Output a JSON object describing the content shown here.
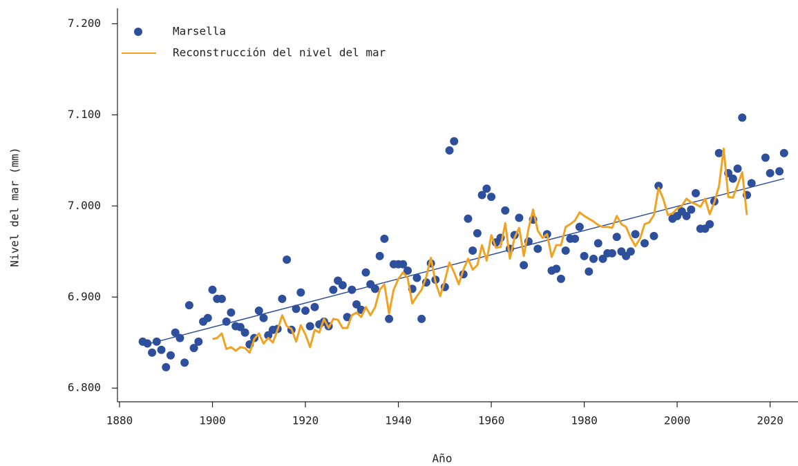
{
  "chart_data": {
    "type": "scatter",
    "x_label": "Año",
    "y_label": "Nivel del mar (mm)",
    "xlim": [
      1880,
      2026
    ],
    "ylim": [
      6785,
      7217
    ],
    "xticks": [
      1880,
      1900,
      1920,
      1940,
      1960,
      1980,
      2000,
      2020
    ],
    "yticks": [
      {
        "value": 6800,
        "label": "6.800"
      },
      {
        "value": 6900,
        "label": "6.900"
      },
      {
        "value": 7000,
        "label": "7.000"
      },
      {
        "value": 7100,
        "label": "7.100"
      },
      {
        "value": 7200,
        "label": "7.200"
      }
    ],
    "legend": "upper left",
    "series": [
      {
        "name": "Marsella",
        "kind": "scatter",
        "color": "#2e4f9c",
        "x": [
          1885,
          1886,
          1887,
          1888,
          1889,
          1890,
          1891,
          1892,
          1893,
          1894,
          1895,
          1896,
          1897,
          1898,
          1899,
          1900,
          1901,
          1902,
          1903,
          1904,
          1905,
          1906,
          1907,
          1908,
          1909,
          1910,
          1911,
          1912,
          1913,
          1914,
          1915,
          1916,
          1917,
          1918,
          1919,
          1920,
          1921,
          1922,
          1923,
          1924,
          1925,
          1926,
          1927,
          1928,
          1929,
          1930,
          1931,
          1932,
          1933,
          1934,
          1935,
          1936,
          1937,
          1938,
          1939,
          1940,
          1941,
          1942,
          1943,
          1944,
          1945,
          1946,
          1947,
          1948,
          1950,
          1951,
          1952,
          1954,
          1955,
          1956,
          1957,
          1958,
          1959,
          1960,
          1961,
          1962,
          1963,
          1964,
          1965,
          1966,
          1967,
          1968,
          1969,
          1970,
          1972,
          1973,
          1974,
          1975,
          1976,
          1977,
          1978,
          1979,
          1980,
          1981,
          1982,
          1983,
          1984,
          1985,
          1986,
          1987,
          1988,
          1989,
          1990,
          1991,
          1993,
          1995,
          1996,
          1999,
          2000,
          2001,
          2002,
          2003,
          2004,
          2005,
          2006,
          2007,
          2008,
          2009,
          2011,
          2012,
          2013,
          2014,
          2015,
          2016,
          2019,
          2020,
          2022,
          2023
        ],
        "values": [
          6851,
          6849,
          6839,
          6851,
          6842,
          6823,
          6836,
          6861,
          6855,
          6828,
          6891,
          6844,
          6851,
          6873,
          6877,
          6908,
          6898,
          6898,
          6873,
          6883,
          6868,
          6867,
          6861,
          6848,
          6855,
          6885,
          6877,
          6858,
          6864,
          6865,
          6898,
          6941,
          6864,
          6887,
          6905,
          6885,
          6868,
          6889,
          6870,
          6873,
          6868,
          6908,
          6918,
          6913,
          6878,
          6908,
          6892,
          6886,
          6927,
          6914,
          6909,
          6945,
          6964,
          6876,
          6936,
          6936,
          6936,
          6929,
          6909,
          6921,
          6876,
          6916,
          6937,
          6919,
          6911,
          7061,
          7071,
          6925,
          6986,
          6951,
          6970,
          7012,
          7019,
          7010,
          6960,
          6965,
          6995,
          6953,
          6968,
          6987,
          6935,
          6961,
          6985,
          6953,
          6969,
          6929,
          6931,
          6920,
          6951,
          6964,
          6964,
          6977,
          6945,
          6928,
          6942,
          6959,
          6942,
          6948,
          6948,
          6966,
          6950,
          6945,
          6950,
          6969,
          6959,
          6967,
          7022,
          6986,
          6989,
          6994,
          6989,
          6996,
          7014,
          6975,
          6975,
          6980,
          7005,
          7058,
          7036,
          7030,
          7041,
          7097,
          7012,
          7025,
          7053,
          7036,
          7038,
          7058
        ]
      },
      {
        "name": "Reconstrucción del nivel del mar",
        "kind": "line",
        "color": "#f0a323",
        "x": [
          1900,
          1901,
          1902,
          1903,
          1904,
          1905,
          1906,
          1907,
          1908,
          1909,
          1910,
          1911,
          1912,
          1913,
          1914,
          1915,
          1916,
          1917,
          1918,
          1919,
          1920,
          1921,
          1922,
          1923,
          1924,
          1925,
          1926,
          1927,
          1928,
          1929,
          1930,
          1931,
          1932,
          1933,
          1934,
          1935,
          1936,
          1937,
          1938,
          1939,
          1940,
          1941,
          1942,
          1943,
          1944,
          1945,
          1946,
          1947,
          1948,
          1949,
          1950,
          1951,
          1952,
          1953,
          1954,
          1955,
          1956,
          1957,
          1958,
          1959,
          1960,
          1961,
          1962,
          1963,
          1964,
          1965,
          1966,
          1967,
          1968,
          1969,
          1970,
          1971,
          1972,
          1973,
          1974,
          1975,
          1976,
          1977,
          1978,
          1979,
          1980,
          1981,
          1982,
          1983,
          1984,
          1985,
          1986,
          1987,
          1988,
          1989,
          1990,
          1991,
          1992,
          1993,
          1994,
          1995,
          1996,
          1997,
          1998,
          1999,
          2000,
          2001,
          2002,
          2003,
          2004,
          2005,
          2006,
          2007,
          2008,
          2009,
          2010,
          2011,
          2012,
          2013,
          2014,
          2015
        ],
        "values": [
          6854,
          6855,
          6860,
          6843,
          6845,
          6841,
          6845,
          6844,
          6839,
          6854,
          6860,
          6849,
          6855,
          6850,
          6864,
          6880,
          6868,
          6865,
          6851,
          6869,
          6859,
          6845,
          6864,
          6861,
          6876,
          6866,
          6876,
          6875,
          6866,
          6866,
          6880,
          6883,
          6878,
          6889,
          6880,
          6889,
          6908,
          6914,
          6882,
          6908,
          6920,
          6927,
          6921,
          6893,
          6901,
          6908,
          6922,
          6943,
          6916,
          6901,
          6918,
          6938,
          6927,
          6914,
          6930,
          6942,
          6930,
          6935,
          6957,
          6940,
          6968,
          6954,
          6955,
          6981,
          6942,
          6965,
          6976,
          6945,
          6975,
          6996,
          6973,
          6965,
          6969,
          6944,
          6957,
          6957,
          6977,
          6980,
          6984,
          6993,
          6989,
          6986,
          6983,
          6979,
          6977,
          6977,
          6976,
          6989,
          6980,
          6977,
          6965,
          6956,
          6964,
          6980,
          6982,
          6990,
          7020,
          7008,
          6990,
          6992,
          6997,
          7000,
          7008,
          7004,
          7002,
          6999,
          7008,
          6991,
          7004,
          7022,
          7063,
          7010,
          7009,
          7023,
          7037,
          6990
        ]
      }
    ],
    "trend": {
      "color": "#2e4f9c",
      "x": [
        1885,
        2023
      ],
      "values": [
        6847,
        7030
      ]
    }
  }
}
